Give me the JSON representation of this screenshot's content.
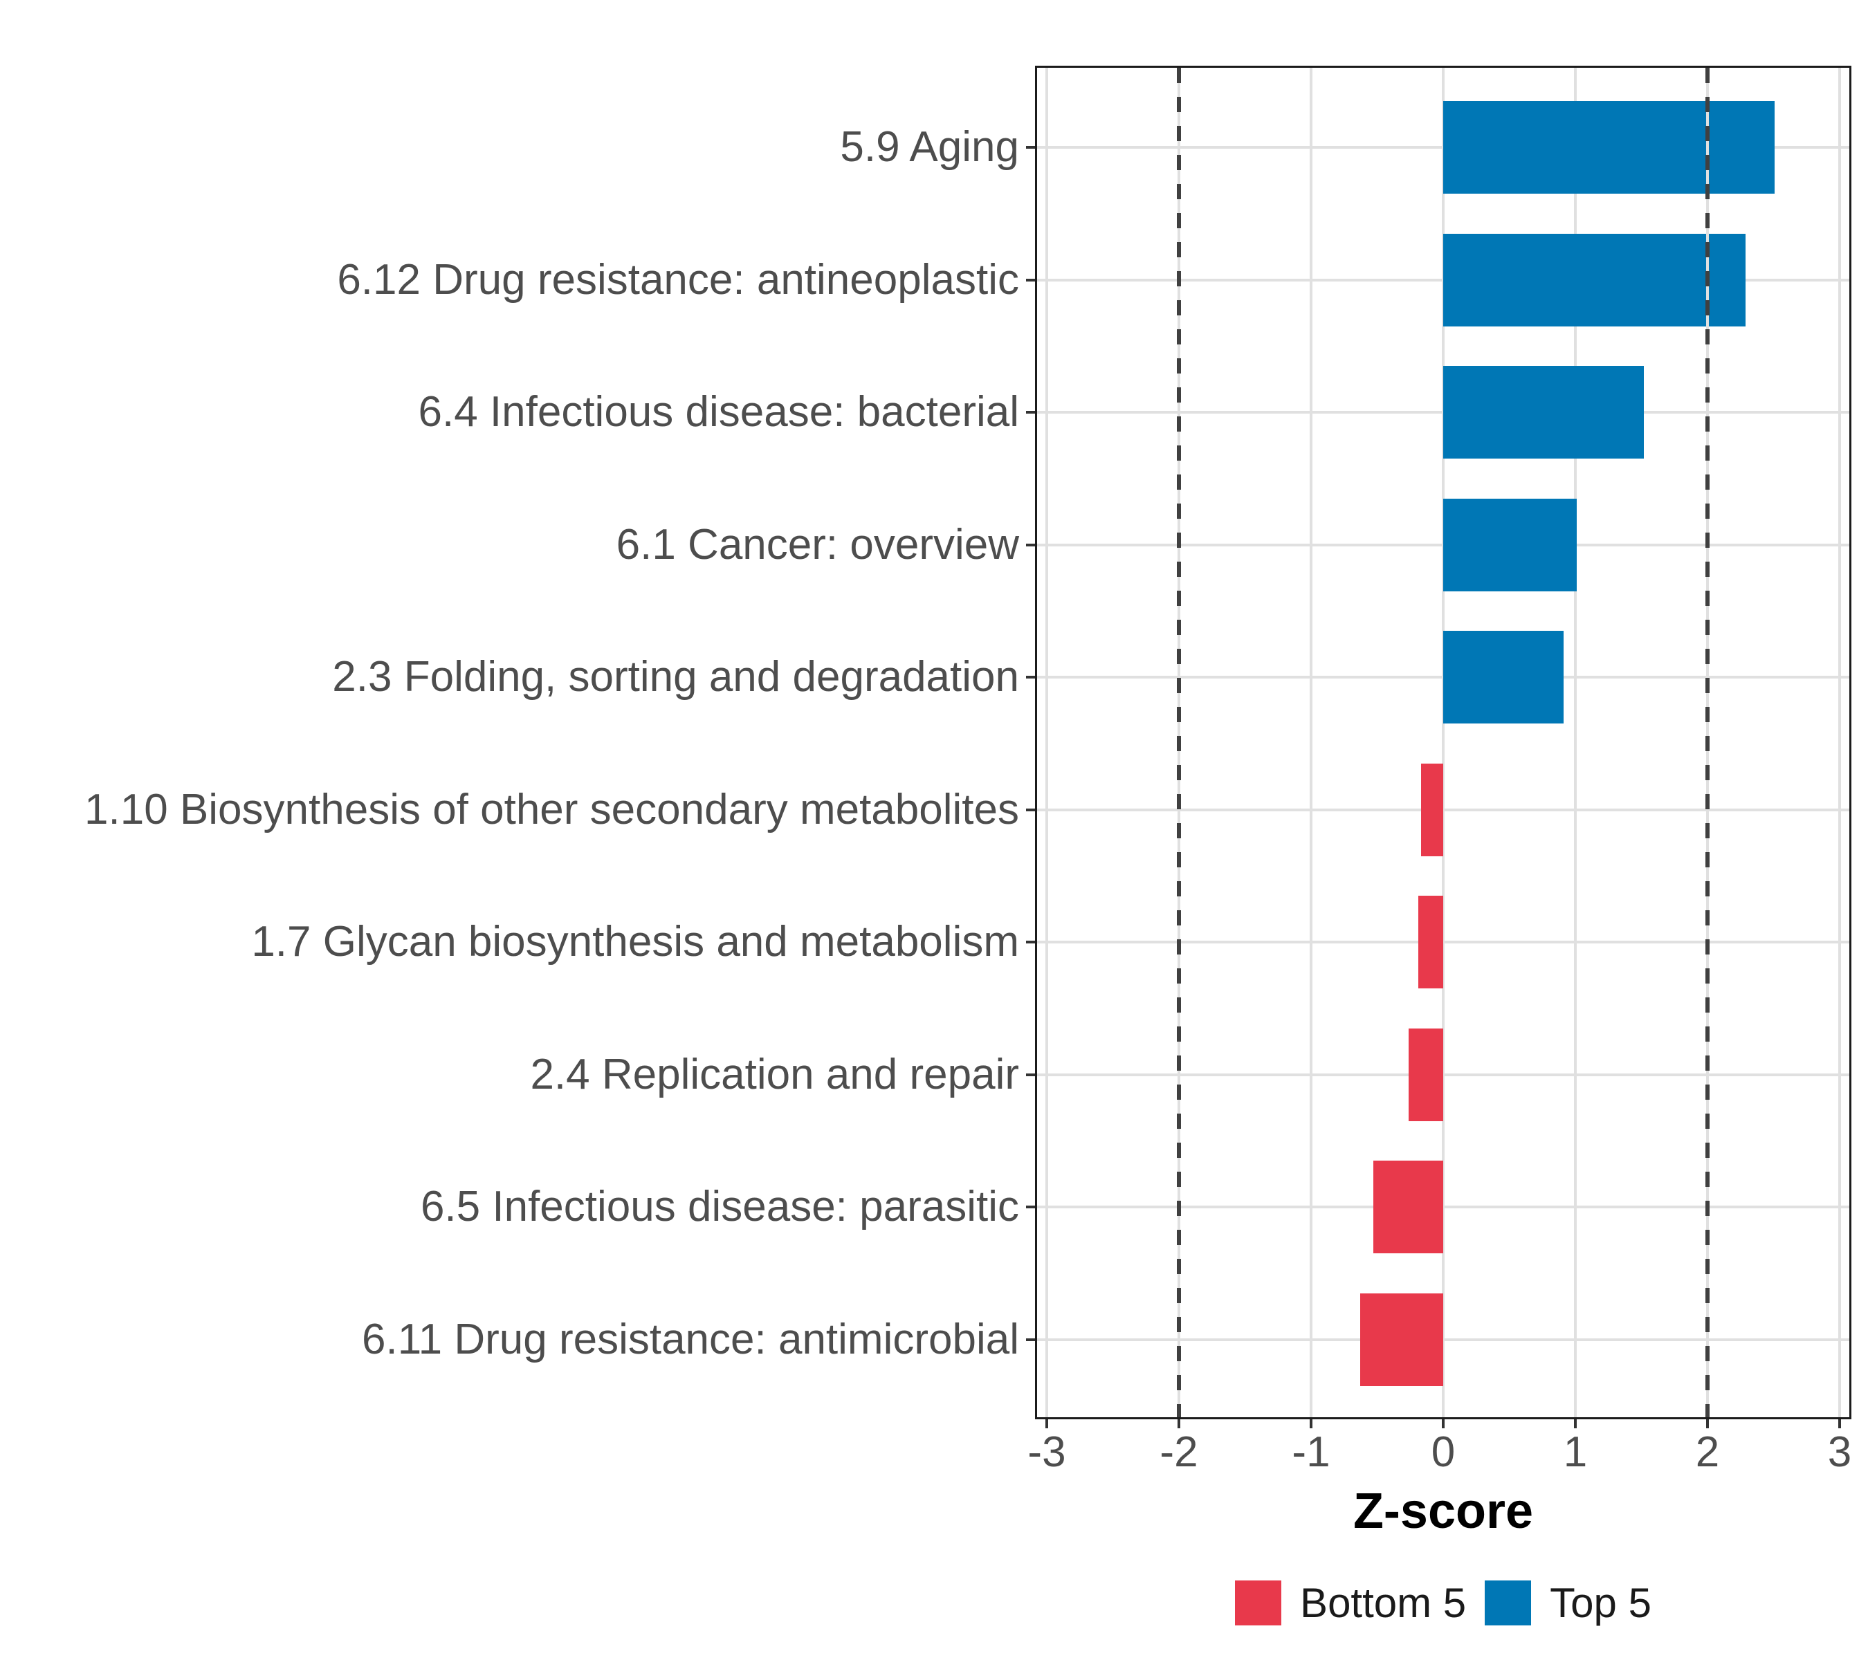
{
  "chart_data": {
    "type": "bar",
    "orientation": "horizontal",
    "title": "",
    "xlabel": "Z-score",
    "ylabel": "",
    "categories": [
      "5.9 Aging",
      "6.12 Drug resistance: antineoplastic",
      "6.4 Infectious disease: bacterial",
      "6.1 Cancer: overview",
      "2.3 Folding, sorting and degradation",
      "1.10 Biosynthesis of other secondary metabolites",
      "1.7 Glycan biosynthesis and metabolism",
      "2.4 Replication and repair",
      "6.5 Infectious disease: parasitic",
      "6.11 Drug resistance: antimicrobial"
    ],
    "values": [
      2.51,
      2.29,
      1.52,
      1.01,
      0.91,
      -0.17,
      -0.19,
      -0.26,
      -0.53,
      -0.63
    ],
    "groups": [
      "Top 5",
      "Top 5",
      "Top 5",
      "Top 5",
      "Top 5",
      "Bottom 5",
      "Bottom 5",
      "Bottom 5",
      "Bottom 5",
      "Bottom 5"
    ],
    "group_colors": {
      "Top 5": "#0077b5",
      "Bottom 5": "#e8394b"
    },
    "x_ticks": [
      -3,
      -2,
      -1,
      0,
      1,
      2,
      3
    ],
    "x_tick_labels": [
      "-3",
      "-2",
      "-1",
      "0",
      "1",
      "2",
      "3"
    ],
    "xlim": [
      -3.07,
      3.07
    ],
    "reference_lines": [
      -2,
      2
    ],
    "reference_line_style": "dashed",
    "grid": "major",
    "legend": {
      "position": "bottom",
      "entries": [
        {
          "label": "Bottom 5",
          "color": "#e8394b"
        },
        {
          "label": "Top 5",
          "color": "#0077b5"
        }
      ]
    }
  },
  "colors": {
    "background": "#ffffff",
    "panel_border": "#1b1b1b",
    "gridline": "#e0e0e0",
    "axis_tick": "#333333",
    "axis_text": "#4d4d4d",
    "axis_title": "#000000",
    "reference_line": "#404040",
    "top5": "#0077b5",
    "bottom5": "#e8394b"
  }
}
